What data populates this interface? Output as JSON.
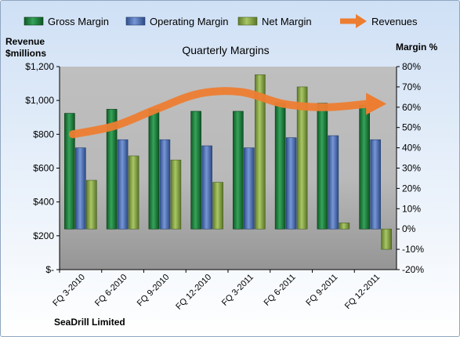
{
  "company": "SeaDrill Limited",
  "chart_data": {
    "type": "bar",
    "title": "Quarterly Margins",
    "categories": [
      "FQ 3-2010",
      "FQ 6-2010",
      "FQ 9-2010",
      "FQ 12-2010",
      "FQ 3-2011",
      "FQ 6-2011",
      "FQ 9-2011",
      "FQ 12-2011"
    ],
    "series": [
      {
        "name": "Gross Margin",
        "type": "bar",
        "axis": "right",
        "color": "#1e7a3c",
        "values": [
          57,
          59,
          59,
          58,
          58,
          62,
          62,
          61
        ]
      },
      {
        "name": "Operating Margin",
        "type": "bar",
        "axis": "right",
        "color": "#4a6fb5",
        "values": [
          40,
          44,
          44,
          41,
          40,
          45,
          46,
          44
        ]
      },
      {
        "name": "Net Margin",
        "type": "bar",
        "axis": "right",
        "color": "#8aa843",
        "values": [
          24,
          36,
          34,
          23,
          76,
          70,
          3,
          -10
        ]
      },
      {
        "name": "Revenues",
        "type": "line",
        "axis": "left",
        "color": "#ed7d31",
        "values": [
          800,
          850,
          950,
          1040,
          1050,
          980,
          960,
          980
        ]
      }
    ],
    "left_axis": {
      "label_line1": "Revenue",
      "label_line2": "$millions",
      "min": 0,
      "max": 1200,
      "ticks": [
        "$-",
        "$200",
        "$400",
        "$600",
        "$800",
        "$1,000",
        "$1,200"
      ]
    },
    "right_axis": {
      "label": "Margin %",
      "min": -20,
      "max": 80,
      "ticks": [
        "-20%",
        "-10%",
        "0%",
        "10%",
        "20%",
        "30%",
        "40%",
        "50%",
        "60%",
        "70%",
        "80%"
      ]
    },
    "legend_position": "top",
    "grid": false
  }
}
